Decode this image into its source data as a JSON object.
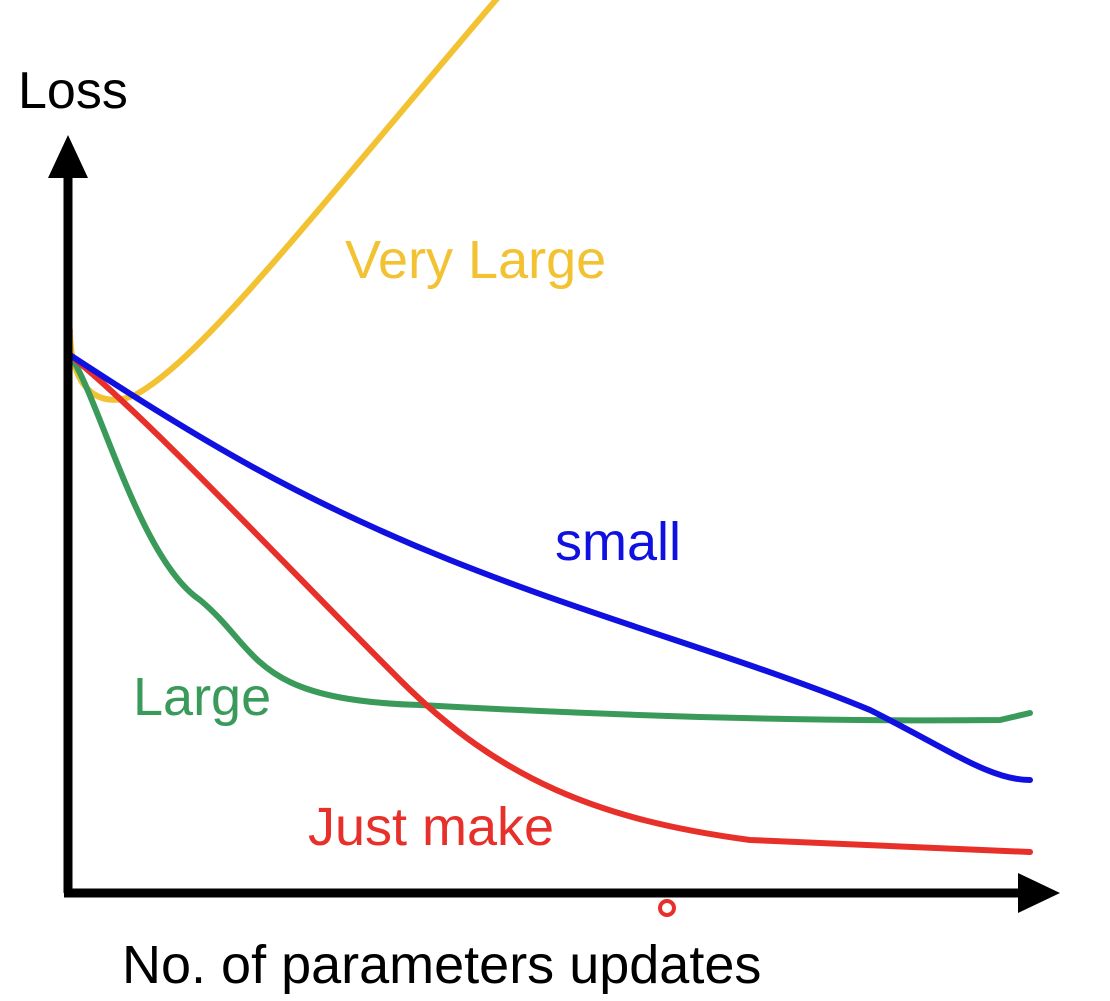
{
  "axes": {
    "y_label": "Loss",
    "x_label": "No. of parameters updates"
  },
  "curves": [
    {
      "label": "Very Large"
    },
    {
      "label": "small"
    },
    {
      "label": "Large"
    },
    {
      "label": "Just make"
    }
  ]
}
